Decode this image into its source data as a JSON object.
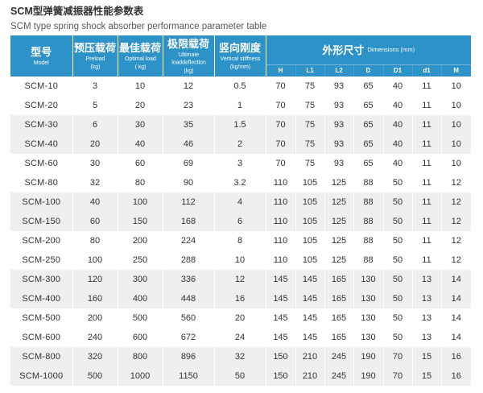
{
  "page": {
    "title_zh": "SCM型弹簧减振器性能参数表",
    "title_en": "SCM type spring shock absorber performance parameter table"
  },
  "colors": {
    "header_bg": "#2d92c7",
    "alt_row_bg": "#efefef",
    "text": "#333333"
  },
  "table": {
    "columns": {
      "model": {
        "zh": "型号",
        "en": "Model"
      },
      "preload": {
        "zh": "预压载荷",
        "en": "Preload",
        "unit": "(kg)"
      },
      "optimal": {
        "zh": "最佳载荷",
        "en": "Optimal load",
        "unit": "( kg)"
      },
      "ultimate": {
        "zh": "极限载荷",
        "en": "Ultimate loaddeflection",
        "unit": "(kg)"
      },
      "stiffness": {
        "zh": "竖向刚度",
        "en": "Vertical stiffness",
        "unit": "(kg/mm)"
      },
      "dimensions": {
        "zh": "外形尺寸",
        "en": "Dimensions (mm)",
        "subs": [
          "H",
          "L1",
          "L2",
          "D",
          "D1",
          "d1",
          "M"
        ]
      }
    },
    "rows": [
      {
        "model": "SCM-10",
        "preload": "3",
        "optimal": "10",
        "ultimate": "12",
        "stiffness": "0.5",
        "dims": [
          "70",
          "75",
          "93",
          "65",
          "40",
          "11",
          "10"
        ]
      },
      {
        "model": "SCM-20",
        "preload": "5",
        "optimal": "20",
        "ultimate": "23",
        "stiffness": "1",
        "dims": [
          "70",
          "75",
          "93",
          "65",
          "40",
          "11",
          "10"
        ]
      },
      {
        "model": "SCM-30",
        "preload": "6",
        "optimal": "30",
        "ultimate": "35",
        "stiffness": "1.5",
        "dims": [
          "70",
          "75",
          "93",
          "65",
          "40",
          "11",
          "10"
        ]
      },
      {
        "model": "SCM-40",
        "preload": "20",
        "optimal": "40",
        "ultimate": "46",
        "stiffness": "2",
        "dims": [
          "70",
          "75",
          "93",
          "65",
          "40",
          "11",
          "10"
        ]
      },
      {
        "model": "SCM-60",
        "preload": "30",
        "optimal": "60",
        "ultimate": "69",
        "stiffness": "3",
        "dims": [
          "70",
          "75",
          "93",
          "65",
          "40",
          "11",
          "10"
        ]
      },
      {
        "model": "SCM-80",
        "preload": "32",
        "optimal": "80",
        "ultimate": "90",
        "stiffness": "3.2",
        "dims": [
          "110",
          "105",
          "125",
          "88",
          "50",
          "11",
          "12"
        ]
      },
      {
        "model": "SCM-100",
        "preload": "40",
        "optimal": "100",
        "ultimate": "112",
        "stiffness": "4",
        "dims": [
          "110",
          "105",
          "125",
          "88",
          "50",
          "11",
          "12"
        ]
      },
      {
        "model": "SCM-150",
        "preload": "60",
        "optimal": "150",
        "ultimate": "168",
        "stiffness": "6",
        "dims": [
          "110",
          "105",
          "125",
          "88",
          "50",
          "11",
          "12"
        ]
      },
      {
        "model": "SCM-200",
        "preload": "80",
        "optimal": "200",
        "ultimate": "224",
        "stiffness": "8",
        "dims": [
          "110",
          "105",
          "125",
          "88",
          "50",
          "11",
          "12"
        ]
      },
      {
        "model": "SCM-250",
        "preload": "100",
        "optimal": "250",
        "ultimate": "288",
        "stiffness": "10",
        "dims": [
          "110",
          "105",
          "125",
          "88",
          "50",
          "11",
          "12"
        ]
      },
      {
        "model": "SCM-300",
        "preload": "120",
        "optimal": "300",
        "ultimate": "336",
        "stiffness": "12",
        "dims": [
          "145",
          "145",
          "165",
          "130",
          "50",
          "13",
          "14"
        ]
      },
      {
        "model": "SCM-400",
        "preload": "160",
        "optimal": "400",
        "ultimate": "448",
        "stiffness": "16",
        "dims": [
          "145",
          "145",
          "165",
          "130",
          "50",
          "13",
          "14"
        ]
      },
      {
        "model": "SCM-500",
        "preload": "200",
        "optimal": "500",
        "ultimate": "560",
        "stiffness": "20",
        "dims": [
          "145",
          "145",
          "165",
          "130",
          "50",
          "13",
          "14"
        ]
      },
      {
        "model": "SCM-600",
        "preload": "240",
        "optimal": "600",
        "ultimate": "672",
        "stiffness": "24",
        "dims": [
          "145",
          "145",
          "165",
          "130",
          "50",
          "13",
          "14"
        ]
      },
      {
        "model": "SCM-800",
        "preload": "320",
        "optimal": "800",
        "ultimate": "896",
        "stiffness": "32",
        "dims": [
          "150",
          "210",
          "245",
          "190",
          "70",
          "15",
          "16"
        ]
      },
      {
        "model": "SCM-1000",
        "preload": "500",
        "optimal": "1000",
        "ultimate": "1150",
        "stiffness": "50",
        "dims": [
          "150",
          "210",
          "245",
          "190",
          "70",
          "15",
          "16"
        ]
      }
    ]
  }
}
